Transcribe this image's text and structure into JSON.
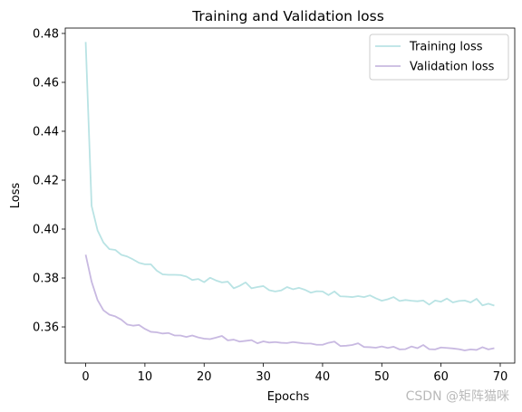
{
  "chart_data": {
    "type": "line",
    "title": "Training and Validation loss",
    "xlabel": "Epochs",
    "ylabel": "Loss",
    "xlim": [
      -3.45,
      72.45
    ],
    "ylim": [
      0.3452,
      0.4822
    ],
    "xticks": [
      0,
      10,
      20,
      30,
      40,
      50,
      60,
      70
    ],
    "yticks": [
      0.36,
      0.38,
      0.4,
      0.42,
      0.44,
      0.46,
      0.48
    ],
    "ytick_labels": [
      "0.36",
      "0.38",
      "0.40",
      "0.42",
      "0.44",
      "0.46",
      "0.48"
    ],
    "legend_position": "upper right",
    "grid": false,
    "series": [
      {
        "name": "Training loss",
        "color": "#b9e3e4",
        "x": [
          0,
          1,
          2,
          3,
          4,
          5,
          6,
          7,
          8,
          9,
          10,
          11,
          12,
          13,
          14,
          15,
          16,
          17,
          18,
          19,
          20,
          21,
          22,
          23,
          24,
          25,
          26,
          27,
          28,
          29,
          30,
          31,
          32,
          33,
          34,
          35,
          36,
          37,
          38,
          39,
          40,
          41,
          42,
          43,
          44,
          45,
          46,
          47,
          48,
          49,
          50,
          51,
          52,
          53,
          54,
          55,
          56,
          57,
          58,
          59,
          60,
          61,
          62,
          63,
          64,
          65,
          66,
          67,
          68,
          69
        ],
        "values": [
          0.4765,
          0.4095,
          0.3995,
          0.3945,
          0.3918,
          0.3915,
          0.3895,
          0.3888,
          0.3876,
          0.3862,
          0.3856,
          0.3856,
          0.383,
          0.3815,
          0.3813,
          0.3813,
          0.3812,
          0.3806,
          0.3792,
          0.3796,
          0.3783,
          0.3801,
          0.379,
          0.3782,
          0.3785,
          0.3758,
          0.3768,
          0.3782,
          0.3758,
          0.3763,
          0.3767,
          0.375,
          0.3745,
          0.3749,
          0.3763,
          0.3754,
          0.376,
          0.3752,
          0.374,
          0.3746,
          0.3745,
          0.373,
          0.3745,
          0.3725,
          0.3724,
          0.3722,
          0.3726,
          0.3722,
          0.3729,
          0.3717,
          0.3707,
          0.3713,
          0.3722,
          0.3706,
          0.371,
          0.3707,
          0.3705,
          0.3708,
          0.3691,
          0.3708,
          0.3703,
          0.3716,
          0.37,
          0.3706,
          0.3708,
          0.37,
          0.3715,
          0.3688,
          0.3695,
          0.3687
        ]
      },
      {
        "name": "Validation loss",
        "color": "#c8b9e1",
        "x": [
          0,
          1,
          2,
          3,
          4,
          5,
          6,
          7,
          8,
          9,
          10,
          11,
          12,
          13,
          14,
          15,
          16,
          17,
          18,
          19,
          20,
          21,
          22,
          23,
          24,
          25,
          26,
          27,
          28,
          29,
          30,
          31,
          32,
          33,
          34,
          35,
          36,
          37,
          38,
          39,
          40,
          41,
          42,
          43,
          44,
          45,
          46,
          47,
          48,
          49,
          50,
          51,
          52,
          53,
          54,
          55,
          56,
          57,
          58,
          59,
          60,
          61,
          62,
          63,
          64,
          65,
          66,
          67,
          68,
          69
        ],
        "values": [
          0.3895,
          0.3785,
          0.371,
          0.3668,
          0.365,
          0.3643,
          0.363,
          0.361,
          0.3605,
          0.3608,
          0.3592,
          0.358,
          0.3578,
          0.3573,
          0.3575,
          0.3565,
          0.3565,
          0.3559,
          0.3565,
          0.3557,
          0.3552,
          0.355,
          0.3556,
          0.3563,
          0.3545,
          0.3548,
          0.354,
          0.3543,
          0.3546,
          0.3533,
          0.3541,
          0.3536,
          0.3538,
          0.3535,
          0.3534,
          0.3538,
          0.3535,
          0.3532,
          0.3532,
          0.3527,
          0.3527,
          0.3535,
          0.354,
          0.3522,
          0.3523,
          0.3526,
          0.3533,
          0.3518,
          0.3517,
          0.3515,
          0.352,
          0.3514,
          0.3519,
          0.3508,
          0.3509,
          0.352,
          0.3513,
          0.3526,
          0.3509,
          0.3508,
          0.3516,
          0.3514,
          0.3512,
          0.3509,
          0.3504,
          0.3508,
          0.3506,
          0.3517,
          0.3508,
          0.3513
        ]
      }
    ]
  },
  "watermark": "CSDN @矩阵猫咪"
}
